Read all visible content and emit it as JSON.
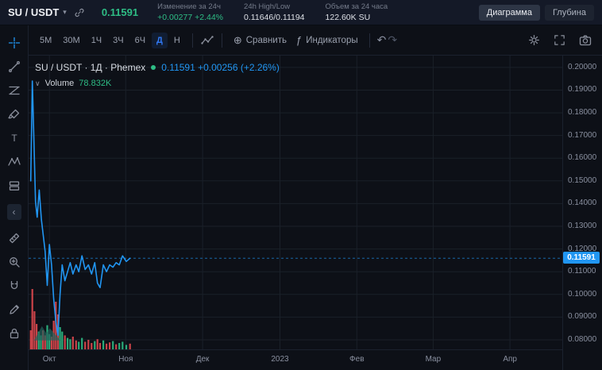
{
  "header": {
    "symbol": "SU / USDT",
    "price": "0.11591",
    "stats": [
      {
        "label": "Изменение за 24ч",
        "value": "+0.00277 +2.44%",
        "type": "up"
      },
      {
        "label": "24h High/Low",
        "value": "0.11646/0.11194",
        "type": "plain"
      },
      {
        "label": "Объем за 24 часа",
        "value": "122.60K SU",
        "type": "plain"
      }
    ],
    "view_buttons": [
      {
        "label": "Диаграмма",
        "active": true
      },
      {
        "label": "Глубина",
        "active": false
      }
    ]
  },
  "toolbar": {
    "intervals": [
      "5M",
      "30M",
      "1Ч",
      "3Ч",
      "6Ч",
      "Д",
      "Н"
    ],
    "active_interval": "Д",
    "compare_label": "Сравнить",
    "indicators_label": "Индикаторы"
  },
  "icons": {
    "caret_down": "▾",
    "legend_caret": "∨",
    "compare_plus": "⊕",
    "indicators_fx": "ƒ",
    "undo": "↶",
    "redo": "↷",
    "collapse_left": "‹",
    "text_tool": "T"
  },
  "side_tools": [
    "crosshair",
    "trend-line",
    "fib-retracement",
    "brush",
    "text",
    "xabcd-pattern",
    "long-short-position",
    "collapse",
    "ruler",
    "zoom",
    "magnet",
    "draw",
    "lock"
  ],
  "legend": {
    "title": "SU / USDT · 1Д · Phemex",
    "price_text": "0.11591 +0.00256 (+2.26%)",
    "volume_label": "Volume",
    "volume_value": "78.832K"
  },
  "axis": {
    "last_price_label": "0.11591"
  },
  "colors": {
    "up": "#2ebd85",
    "down": "#e0494f",
    "line": "#2196f3",
    "grid": "#1a2029",
    "bg": "#0d1017"
  },
  "chart_data": {
    "type": "line",
    "title": "SU / USDT 1Д Phemex",
    "last_price": 0.11591,
    "change_text": "+0.00256 (+2.26%)",
    "volume_legend": "78.832K",
    "price_axis": {
      "min": 0.0758,
      "max": 0.2052,
      "ticks": [
        0.2,
        0.19,
        0.18,
        0.17,
        0.16,
        0.15,
        0.14,
        0.13,
        0.12,
        0.11,
        0.1,
        0.09,
        0.08
      ],
      "tick_labels": [
        "0.20000",
        "0.19000",
        "0.18000",
        "0.17000",
        "0.16000",
        "0.15000",
        "0.14000",
        "0.13000",
        "0.12000",
        "0.11000",
        "0.10000",
        "0.09000",
        "0.08000"
      ]
    },
    "time_axis": {
      "labels": [
        "Окт",
        "Ноя",
        "Дек",
        "2023",
        "Фев",
        "Мар",
        "Апр"
      ],
      "positions": [
        0.039,
        0.182,
        0.326,
        0.471,
        0.615,
        0.758,
        0.902
      ]
    },
    "series": [
      {
        "name": "SU/USDT close",
        "points": [
          [
            0.004,
            0.15
          ],
          [
            0.007,
            0.194
          ],
          [
            0.01,
            0.168
          ],
          [
            0.013,
            0.141
          ],
          [
            0.016,
            0.134
          ],
          [
            0.02,
            0.146
          ],
          [
            0.024,
            0.133
          ],
          [
            0.028,
            0.125
          ],
          [
            0.031,
            0.119
          ],
          [
            0.035,
            0.104
          ],
          [
            0.039,
            0.122
          ],
          [
            0.043,
            0.113
          ],
          [
            0.047,
            0.098
          ],
          [
            0.051,
            0.088
          ],
          [
            0.055,
            0.082
          ],
          [
            0.059,
            0.1
          ],
          [
            0.063,
            0.113
          ],
          [
            0.068,
            0.106
          ],
          [
            0.073,
            0.11
          ],
          [
            0.078,
            0.114
          ],
          [
            0.083,
            0.109
          ],
          [
            0.089,
            0.113
          ],
          [
            0.094,
            0.11
          ],
          [
            0.1,
            0.117
          ],
          [
            0.106,
            0.111
          ],
          [
            0.112,
            0.113
          ],
          [
            0.118,
            0.109
          ],
          [
            0.124,
            0.114
          ],
          [
            0.129,
            0.105
          ],
          [
            0.134,
            0.103
          ],
          [
            0.14,
            0.113
          ],
          [
            0.146,
            0.11
          ],
          [
            0.152,
            0.113
          ],
          [
            0.158,
            0.112
          ],
          [
            0.164,
            0.114
          ],
          [
            0.17,
            0.113
          ],
          [
            0.176,
            0.117
          ],
          [
            0.183,
            0.1145
          ],
          [
            0.19,
            0.11591
          ]
        ]
      }
    ],
    "volume_bars": [
      [
        0.004,
        0.3,
        0
      ],
      [
        0.007,
        0.95,
        0
      ],
      [
        0.011,
        0.6,
        0
      ],
      [
        0.015,
        0.4,
        0
      ],
      [
        0.019,
        0.28,
        1
      ],
      [
        0.023,
        0.22,
        1
      ],
      [
        0.027,
        0.3,
        0
      ],
      [
        0.031,
        0.22,
        0
      ],
      [
        0.035,
        0.38,
        1
      ],
      [
        0.039,
        0.24,
        1
      ],
      [
        0.043,
        0.2,
        0
      ],
      [
        0.047,
        0.45,
        0
      ],
      [
        0.051,
        0.75,
        0
      ],
      [
        0.055,
        0.55,
        0
      ],
      [
        0.059,
        0.35,
        1
      ],
      [
        0.063,
        0.28,
        1
      ],
      [
        0.068,
        0.22,
        0
      ],
      [
        0.073,
        0.18,
        1
      ],
      [
        0.078,
        0.16,
        1
      ],
      [
        0.083,
        0.2,
        0
      ],
      [
        0.089,
        0.14,
        0
      ],
      [
        0.094,
        0.12,
        1
      ],
      [
        0.1,
        0.18,
        1
      ],
      [
        0.106,
        0.12,
        0
      ],
      [
        0.112,
        0.15,
        0
      ],
      [
        0.118,
        0.1,
        0
      ],
      [
        0.124,
        0.13,
        1
      ],
      [
        0.129,
        0.16,
        0
      ],
      [
        0.134,
        0.1,
        0
      ],
      [
        0.14,
        0.14,
        1
      ],
      [
        0.146,
        0.09,
        0
      ],
      [
        0.152,
        0.11,
        0
      ],
      [
        0.158,
        0.13,
        1
      ],
      [
        0.164,
        0.08,
        0
      ],
      [
        0.17,
        0.1,
        1
      ],
      [
        0.176,
        0.12,
        1
      ],
      [
        0.183,
        0.07,
        1
      ],
      [
        0.19,
        0.09,
        0
      ]
    ]
  }
}
